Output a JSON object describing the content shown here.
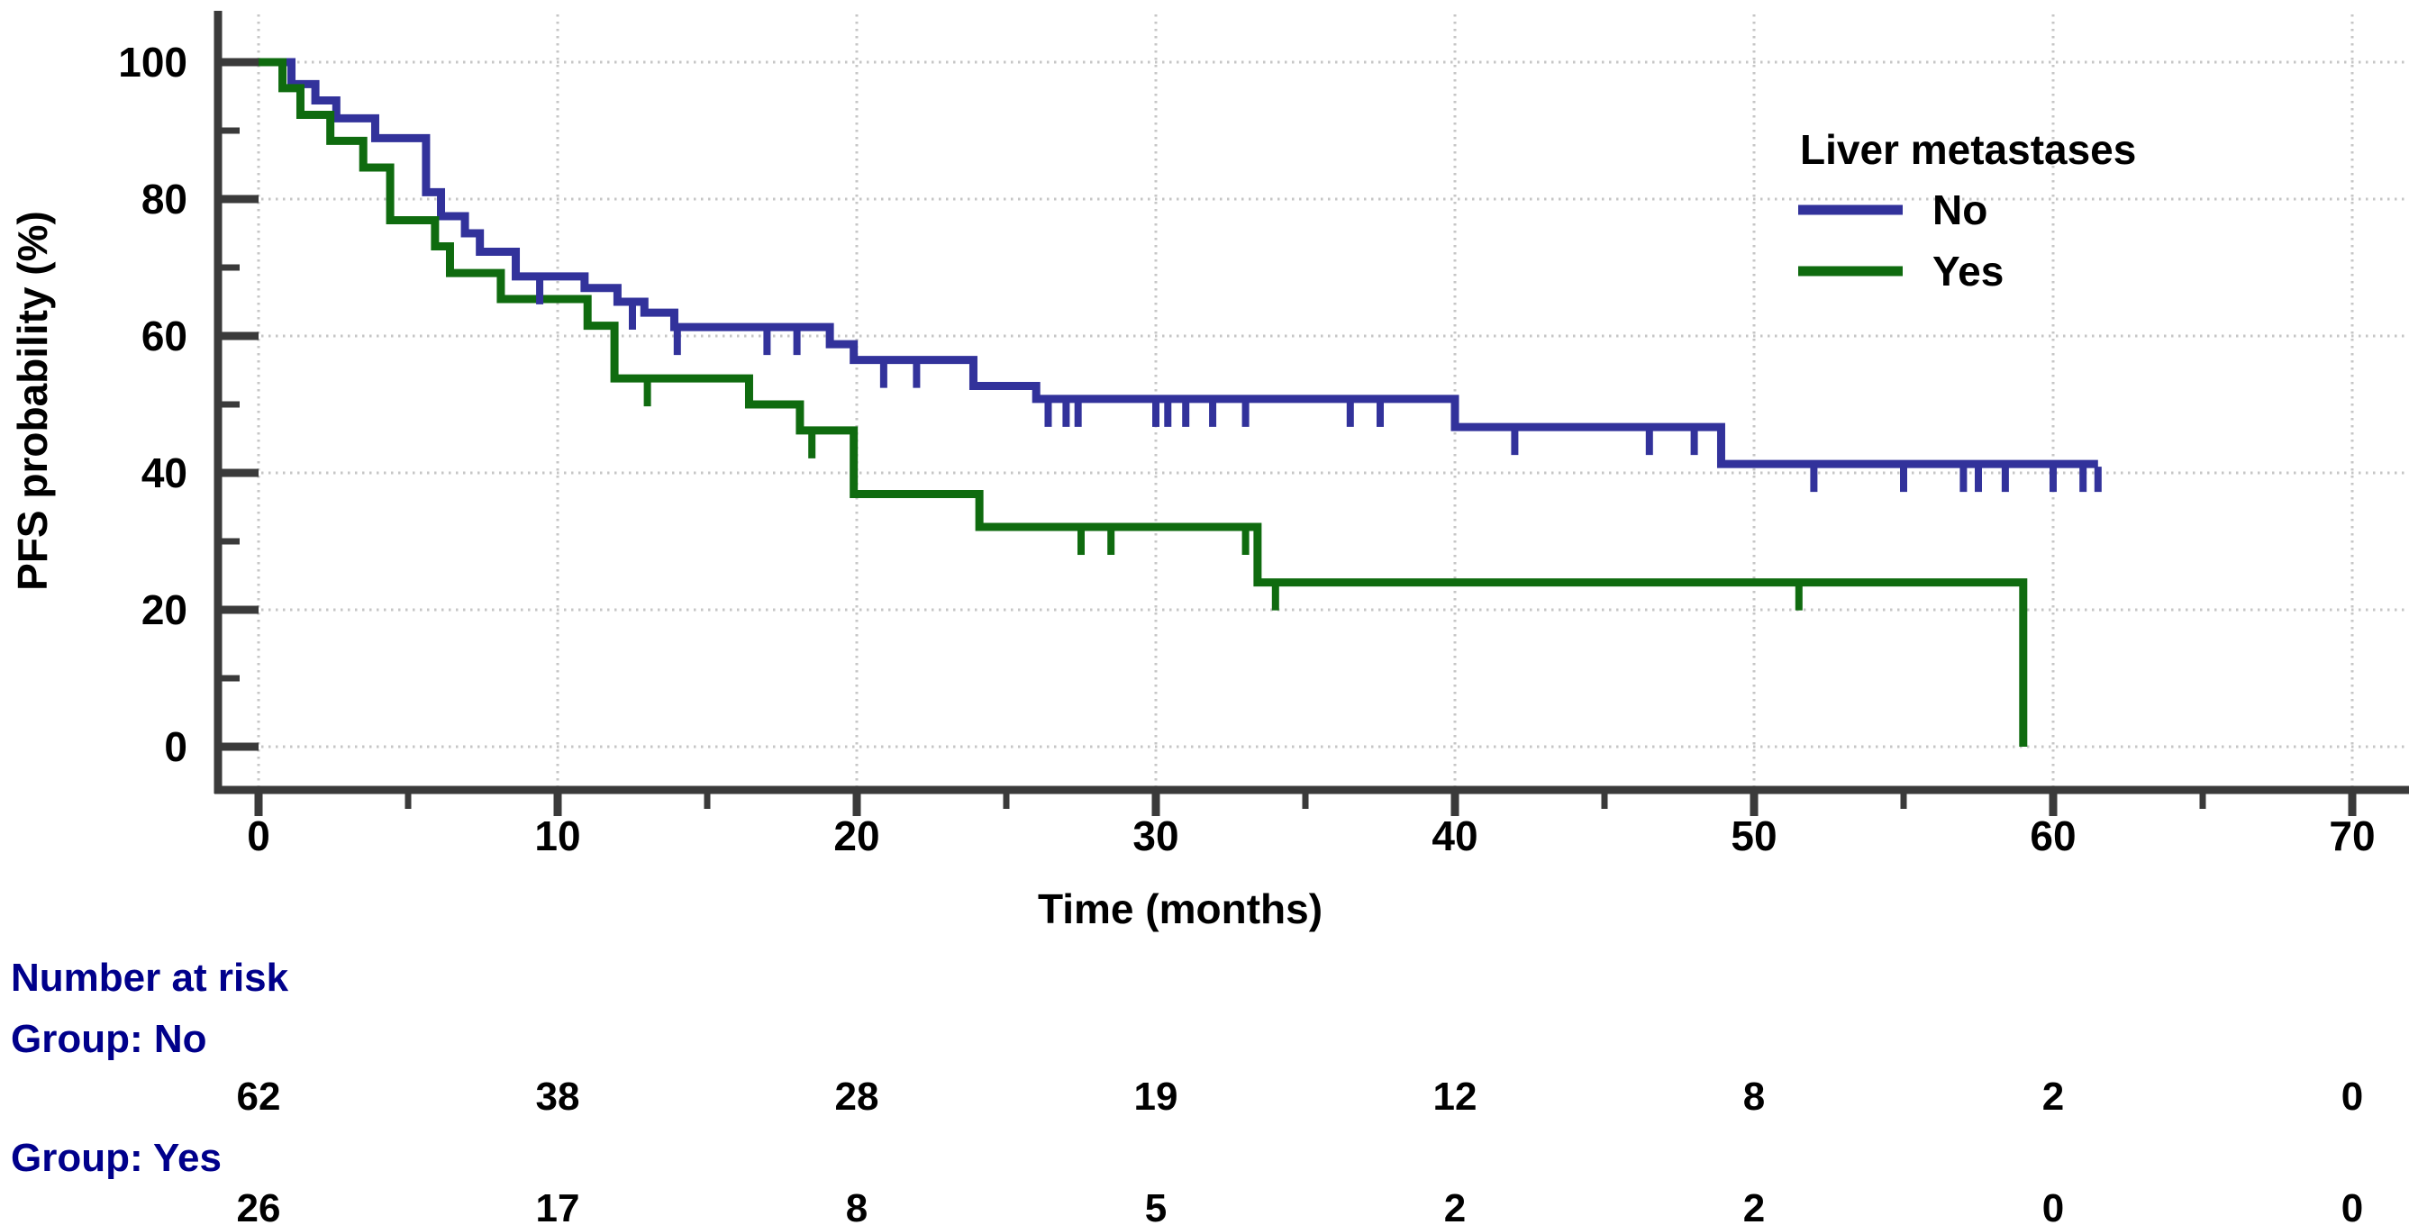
{
  "chart_data": {
    "type": "line",
    "subtype": "kaplan-meier-step",
    "title": "",
    "xlabel": "Time (months)",
    "ylabel": "PFS probability (%)",
    "xlim": [
      0,
      70
    ],
    "ylim": [
      0,
      100
    ],
    "x_ticks": [
      0,
      10,
      20,
      30,
      40,
      50,
      60,
      70
    ],
    "x_minor_ticks": [
      5,
      15,
      25,
      35,
      45,
      55,
      65
    ],
    "y_ticks": [
      0,
      20,
      40,
      60,
      80,
      100
    ],
    "y_minor_ticks": [
      10,
      30,
      50,
      70,
      90
    ],
    "grid": "dotted gridlines at major ticks",
    "axis_color": "#3A3A3A",
    "grid_color": "#C6C6C6",
    "legend": {
      "title": "Liver metastases",
      "position": "top-right",
      "items": [
        {
          "label": "No",
          "color": "#32329B"
        },
        {
          "label": "Yes",
          "color": "#0F6B0F"
        }
      ]
    },
    "series": [
      {
        "name": "No",
        "color": "#32329B",
        "end_time": 61.5,
        "steps": [
          [
            0,
            100
          ],
          [
            1.1,
            96.8
          ],
          [
            1.9,
            94.4
          ],
          [
            2.6,
            91.8
          ],
          [
            3.9,
            88.9
          ],
          [
            5.6,
            81.0
          ],
          [
            6.1,
            77.5
          ],
          [
            6.9,
            75.0
          ],
          [
            7.4,
            72.3
          ],
          [
            8.6,
            68.7
          ],
          [
            10.9,
            67.0
          ],
          [
            12.0,
            65.0
          ],
          [
            12.9,
            63.4
          ],
          [
            13.9,
            61.3
          ],
          [
            19.1,
            58.8
          ],
          [
            19.9,
            56.5
          ],
          [
            23.9,
            52.7
          ],
          [
            26.0,
            50.8
          ],
          [
            40.0,
            46.7
          ],
          [
            48.9,
            41.3
          ]
        ],
        "censor_times": [
          9.4,
          12.5,
          14.0,
          17.0,
          18.0,
          20.9,
          22.0,
          26.4,
          27.0,
          27.4,
          30.0,
          30.4,
          31.0,
          31.9,
          33.0,
          36.5,
          37.5,
          42.0,
          46.5,
          48.0,
          52.0,
          55.0,
          57.0,
          57.5,
          58.4,
          60.0,
          61.0,
          61.5
        ]
      },
      {
        "name": "Yes",
        "color": "#0F6B0F",
        "end_time": 59.0,
        "steps": [
          [
            0,
            100
          ],
          [
            0.8,
            96.2
          ],
          [
            1.4,
            92.3
          ],
          [
            2.4,
            88.5
          ],
          [
            3.5,
            84.6
          ],
          [
            4.4,
            76.9
          ],
          [
            5.9,
            73.1
          ],
          [
            6.4,
            69.2
          ],
          [
            8.1,
            65.4
          ],
          [
            11.0,
            61.5
          ],
          [
            11.9,
            53.8
          ],
          [
            16.4,
            50.0
          ],
          [
            18.1,
            46.2
          ],
          [
            19.9,
            36.9
          ],
          [
            24.1,
            32.1
          ],
          [
            33.4,
            24.0
          ],
          [
            59.0,
            0
          ]
        ],
        "censor_times": [
          13.0,
          18.5,
          27.5,
          28.5,
          33.0,
          34.0,
          51.5
        ]
      }
    ],
    "risk_table": {
      "title": "Number at risk",
      "heading_color": "#00008B",
      "time_points": [
        0,
        10,
        20,
        30,
        40,
        50,
        60,
        70
      ],
      "groups": [
        {
          "label": "Group: No",
          "counts": [
            62,
            38,
            28,
            19,
            12,
            8,
            2,
            0
          ]
        },
        {
          "label": "Group: Yes",
          "counts": [
            26,
            17,
            8,
            5,
            2,
            2,
            0,
            0
          ]
        }
      ]
    }
  }
}
